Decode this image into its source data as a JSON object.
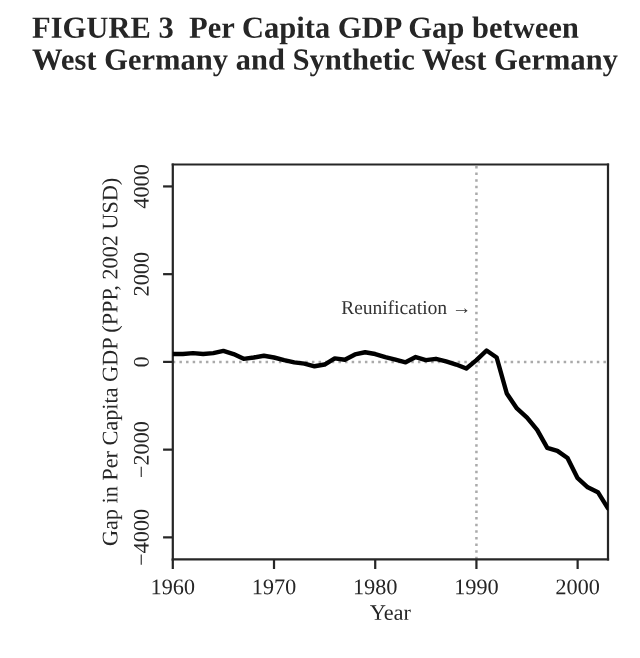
{
  "chart_data": {
    "type": "line",
    "title": "FIGURE 3  Per Capita GDP Gap between West Germany and Synthetic West Germany",
    "xlabel": "Year",
    "ylabel": "Gap in Per Capita GDP (PPP, 2002 USD)",
    "x": [
      1960,
      1961,
      1962,
      1963,
      1964,
      1965,
      1966,
      1967,
      1968,
      1969,
      1970,
      1971,
      1972,
      1973,
      1974,
      1975,
      1976,
      1977,
      1978,
      1979,
      1980,
      1981,
      1982,
      1983,
      1984,
      1985,
      1986,
      1987,
      1988,
      1989,
      1990,
      1991,
      1992,
      1993,
      1994,
      1995,
      1996,
      1997,
      1998,
      1999,
      2000,
      2001,
      2002,
      2003
    ],
    "series": [
      {
        "color": "#000000",
        "values": [
          180,
          180,
          200,
          180,
          200,
          250,
          180,
          70,
          100,
          140,
          100,
          40,
          -10,
          -40,
          -100,
          -60,
          80,
          50,
          170,
          220,
          180,
          110,
          50,
          -10,
          110,
          40,
          70,
          10,
          -60,
          -150,
          40,
          260,
          100,
          -720,
          -1060,
          -1270,
          -1550,
          -1960,
          -2030,
          -2190,
          -2650,
          -2860,
          -2970,
          -3340
        ]
      }
    ],
    "xlim": [
      1960,
      2003
    ],
    "ylim": [
      -4500,
      4500
    ],
    "xticks": [
      1960,
      1970,
      1980,
      1990,
      2000
    ],
    "yticks": [
      {
        "value": -4000,
        "label": "−4000"
      },
      {
        "value": -2000,
        "label": "−2000"
      },
      0,
      2000,
      4000
    ],
    "ref_lines": [
      {
        "axis": "x",
        "value": 1990,
        "color": "#aaaaaa",
        "line_style": "dotted"
      },
      {
        "axis": "y",
        "value": 0,
        "color": "#aaaaaa",
        "line_style": "dotted"
      }
    ],
    "annotations": [
      {
        "text": "Reunification →",
        "x": 1989.5,
        "y": 1200
      }
    ],
    "grid": false,
    "legend": false,
    "line_style": "solid"
  }
}
